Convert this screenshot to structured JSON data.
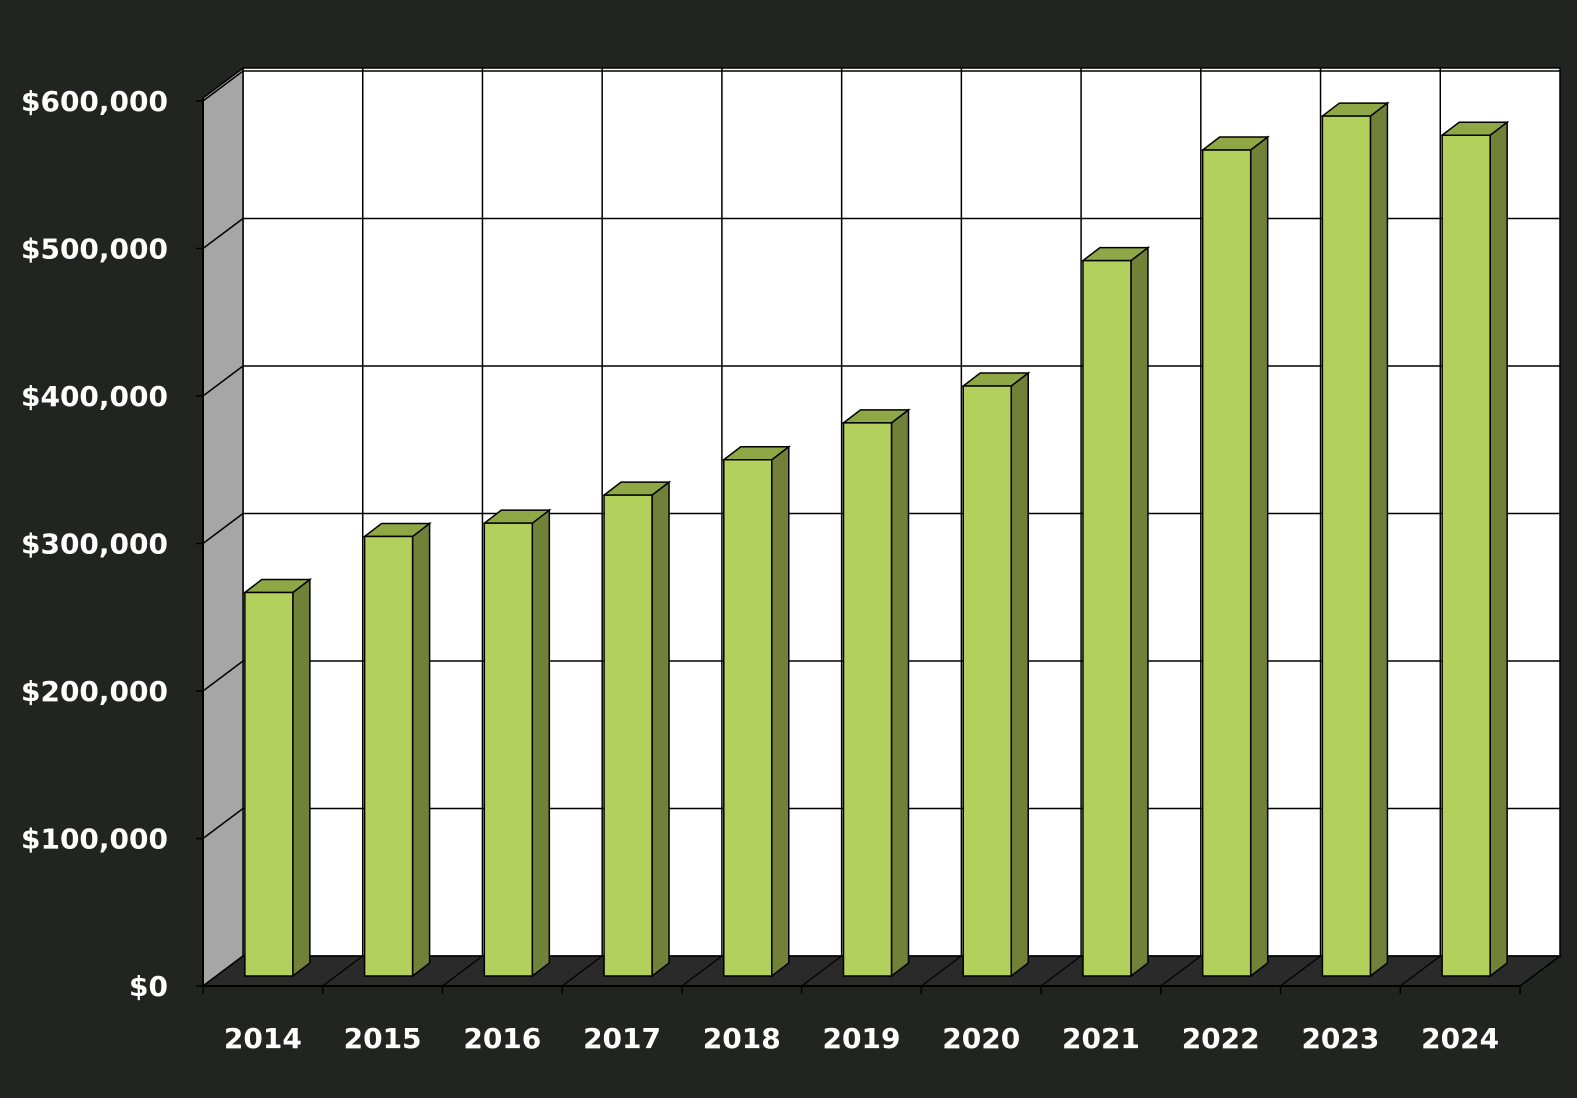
{
  "chart_data": {
    "type": "bar",
    "categories": [
      "2014",
      "2015",
      "2016",
      "2017",
      "2018",
      "2019",
      "2020",
      "2021",
      "2022",
      "2023",
      "2024"
    ],
    "series": [
      {
        "values": [
          260000,
          298000,
          307000,
          326000,
          350000,
          375000,
          400000,
          485000,
          560000,
          583000,
          570000
        ]
      }
    ],
    "y_ticks": [
      0,
      100000,
      200000,
      300000,
      400000,
      500000,
      600000
    ],
    "y_tick_labels": [
      "$0",
      "$100,000",
      "$200,000",
      "$300,000",
      "$400,000",
      "$500,000",
      "$600,000"
    ],
    "ylim": [
      0,
      600000
    ],
    "grid": true,
    "style": "3d",
    "colors": {
      "background": "#22251f",
      "plot": "#ffffff",
      "side_wall": "#a6a6a6",
      "floor": "#2a2a2a",
      "bar_front": "#b3d05c",
      "bar_side": "#718238",
      "bar_top": "#8fa845",
      "gridline": "#000000"
    }
  }
}
